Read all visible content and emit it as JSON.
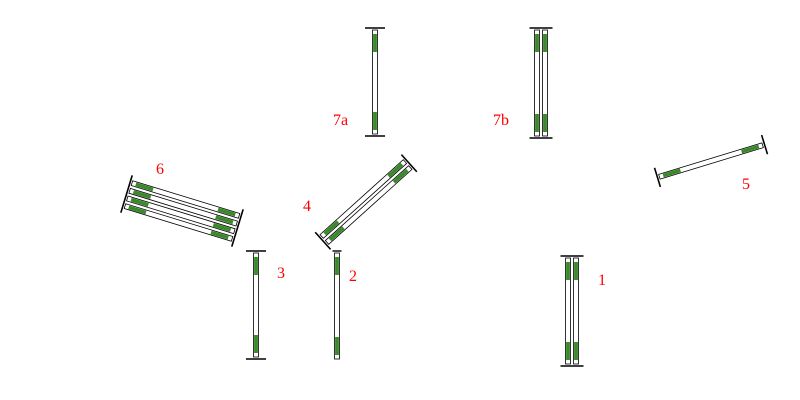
{
  "course": {
    "colors": {
      "rail_stripe": "#3a8a2a",
      "rail_base": "#ffffff",
      "outline": "#000000",
      "label": "#ff0000",
      "background": "#ffffff"
    },
    "fences": [
      {
        "id": "fence-1",
        "label": "1",
        "rails": 2,
        "orientation": "vertical"
      },
      {
        "id": "fence-2",
        "label": "2",
        "rails": 1,
        "orientation": "vertical"
      },
      {
        "id": "fence-3",
        "label": "3",
        "rails": 1,
        "orientation": "vertical"
      },
      {
        "id": "fence-4",
        "label": "4",
        "rails": 2,
        "orientation": "diagonal"
      },
      {
        "id": "fence-5",
        "label": "5",
        "rails": 1,
        "orientation": "diagonal"
      },
      {
        "id": "fence-6",
        "label": "6",
        "rails": 4,
        "orientation": "diagonal"
      },
      {
        "id": "fence-7a",
        "label": "7a",
        "rails": 1,
        "orientation": "vertical"
      },
      {
        "id": "fence-7b",
        "label": "7b",
        "rails": 2,
        "orientation": "vertical"
      }
    ]
  }
}
